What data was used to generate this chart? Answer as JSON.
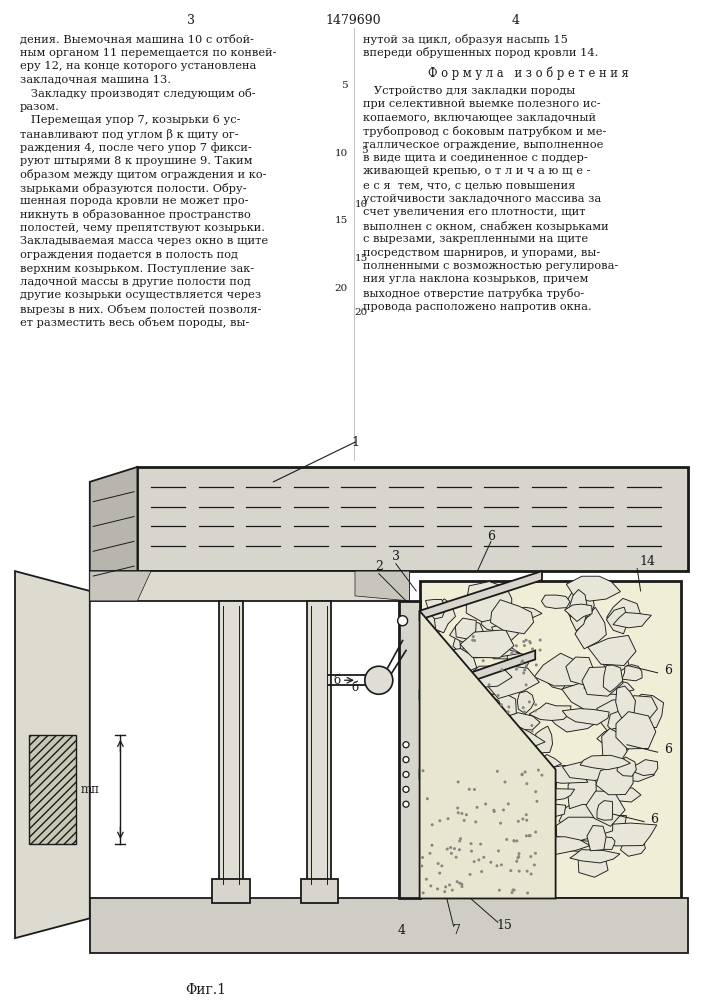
{
  "background_color": "#ffffff",
  "text_color": "#1a1a1a",
  "page_number_left": "3",
  "patent_number": "1479690",
  "page_number_right": "4",
  "left_column_lines": [
    "дения. Выемочная машина 10 с отбой-",
    "ным органом 11 перемещается по конвей-",
    "еру 12, на конце которого установлена",
    "закладочная машина 13.",
    "   Закладку производят следующим об-",
    "разом.",
    "   Перемещая упор 7, козырьки 6 ус-",
    "танавливают под углом β к щиту ог-",
    "раждения 4, после чего упор 7 фикси-",
    "руют штырями 8 к проушине 9. Таким",
    "образом между щитом ограждения и ко-",
    "зырьками образуются полости. Обру-",
    "шенная порода кровли не может про-",
    "никнуть в образованное пространство",
    "полостей, чему препятствуют козырьки.",
    "Закладываемая масса через окно в щите",
    "ограждения подается в полость под",
    "верхним козырьком. Поступление зак-",
    "ладочной массы в другие полости под",
    "другие козырьки осуществляется через",
    "вырезы в них. Объем полостей позволя-",
    "ет разместить весь объем породы, вы-"
  ],
  "right_top_lines": [
    "нутой за цикл, образуя насыпь 15",
    "впереди обрушенных пород кровли 14."
  ],
  "formula_header": "Ф о р м у л а   и з о б р е т е н и я",
  "right_body_lines": [
    "   Устройство для закладки породы",
    "при селективной выемке полезного ис-",
    "копаемого, включающее закладочный",
    "трубопровод с боковым патрубком и ме-",
    "таллическое ограждение, выполненное",
    "в виде щита и соединенное с поддер-",
    "живающей крепью, о т л и ч а ю щ е -",
    "е с я  тем, что, с целью повышения",
    "устойчивости закладочного массива за",
    "счет увеличения его плотности, щит",
    "выполнен с окном, снабжен козырьками",
    "с вырезами, закрепленными на щите",
    "посредством шарниров, и упорами, вы-",
    "полненными с возможностью регулирова-",
    "ния угла наклона козырьков, причем",
    "выходное отверстие патрубка трубо-",
    "провода расположено напротив окна."
  ],
  "fig_label": "Φиг.1"
}
